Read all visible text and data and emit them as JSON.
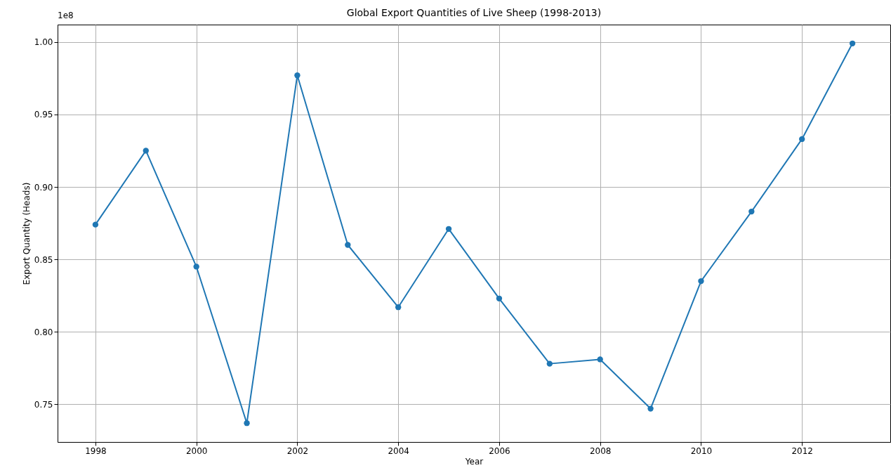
{
  "chart_data": {
    "type": "line",
    "title": "Global Export Quantities of Live Sheep (1998-2013)",
    "xlabel": "Year",
    "ylabel": "Export Quantity (Heads)",
    "annotations": [
      "1e8"
    ],
    "x": [
      1998,
      1999,
      2000,
      2001,
      2002,
      2003,
      2004,
      2005,
      2006,
      2007,
      2008,
      2009,
      2010,
      2011,
      2012,
      2013
    ],
    "series": [
      {
        "color": "#1f77b4",
        "values": [
          0.874,
          0.925,
          0.845,
          0.737,
          0.977,
          0.86,
          0.817,
          0.871,
          0.823,
          0.778,
          0.781,
          0.747,
          0.835,
          0.883,
          0.933,
          0.999
        ]
      }
    ],
    "xlim": [
      1997.25,
      2013.75
    ],
    "xticks": [
      1998,
      2000,
      2002,
      2004,
      2006,
      2008,
      2010,
      2012
    ],
    "ylim": [
      0.724,
      1.012
    ],
    "yticks": [
      {
        "value": 0.75,
        "label": "0.75"
      },
      {
        "value": 0.8,
        "label": "0.80"
      },
      {
        "value": 0.85,
        "label": "0.85"
      },
      {
        "value": 0.9,
        "label": "0.90"
      },
      {
        "value": 0.95,
        "label": "0.95"
      },
      {
        "value": 1.0,
        "label": "1.00"
      }
    ],
    "grid": true,
    "marker": "circle",
    "line_style": "solid"
  }
}
